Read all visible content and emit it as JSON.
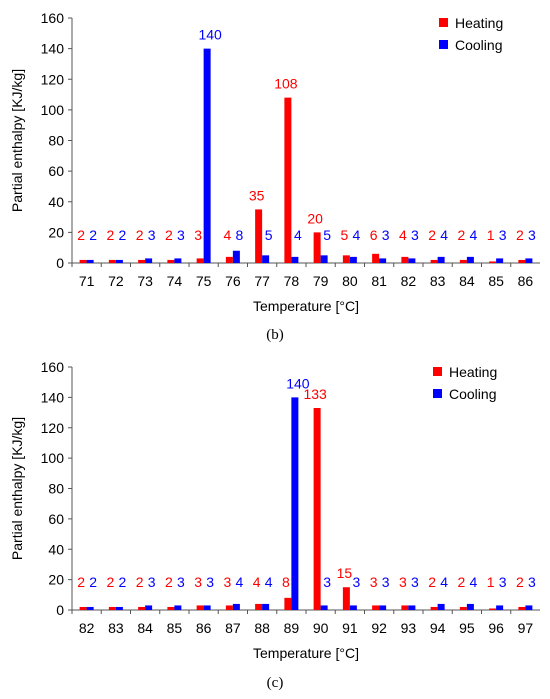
{
  "figures": [
    {
      "caption": "(b)",
      "chart_data": {
        "type": "bar",
        "categories": [
          "71",
          "72",
          "73",
          "74",
          "75",
          "76",
          "77",
          "78",
          "79",
          "80",
          "81",
          "82",
          "83",
          "84",
          "85",
          "86"
        ],
        "series": [
          {
            "name": "Heating",
            "color": "#ff0000",
            "values": [
              2,
              2,
              2,
              2,
              3,
              4,
              35,
              108,
              20,
              5,
              6,
              4,
              2,
              2,
              1,
              2
            ]
          },
          {
            "name": "Cooling",
            "color": "#0000ff",
            "values": [
              2,
              2,
              3,
              3,
              140,
              8,
              5,
              4,
              5,
              4,
              3,
              3,
              4,
              4,
              3,
              3
            ]
          }
        ],
        "xlabel": "Temperature [°C]",
        "ylabel": "Partial enthalpy [KJ/kg]",
        "ylim": [
          0,
          160
        ],
        "yticks": [
          0,
          20,
          40,
          60,
          80,
          100,
          120,
          140,
          160
        ],
        "legend": "top-right",
        "grid": false
      }
    },
    {
      "caption": "(c)",
      "chart_data": {
        "type": "bar",
        "categories": [
          "82",
          "83",
          "84",
          "85",
          "86",
          "87",
          "88",
          "89",
          "90",
          "91",
          "92",
          "93",
          "94",
          "95",
          "96",
          "97"
        ],
        "series": [
          {
            "name": "Heating",
            "color": "#ff0000",
            "values": [
              2,
              2,
              2,
              2,
              3,
              3,
              4,
              8,
              133,
              15,
              3,
              3,
              2,
              2,
              1,
              2
            ]
          },
          {
            "name": "Cooling",
            "color": "#0000ff",
            "values": [
              2,
              2,
              3,
              3,
              3,
              4,
              4,
              140,
              3,
              3,
              3,
              3,
              4,
              4,
              3,
              3
            ]
          }
        ],
        "xlabel": "Temperature [°C]",
        "ylabel": "Partial enthalpy [KJ/kg]",
        "ylim": [
          0,
          160
        ],
        "yticks": [
          0,
          20,
          40,
          60,
          80,
          100,
          120,
          140,
          160
        ],
        "legend": "top-right",
        "grid": false
      }
    }
  ]
}
